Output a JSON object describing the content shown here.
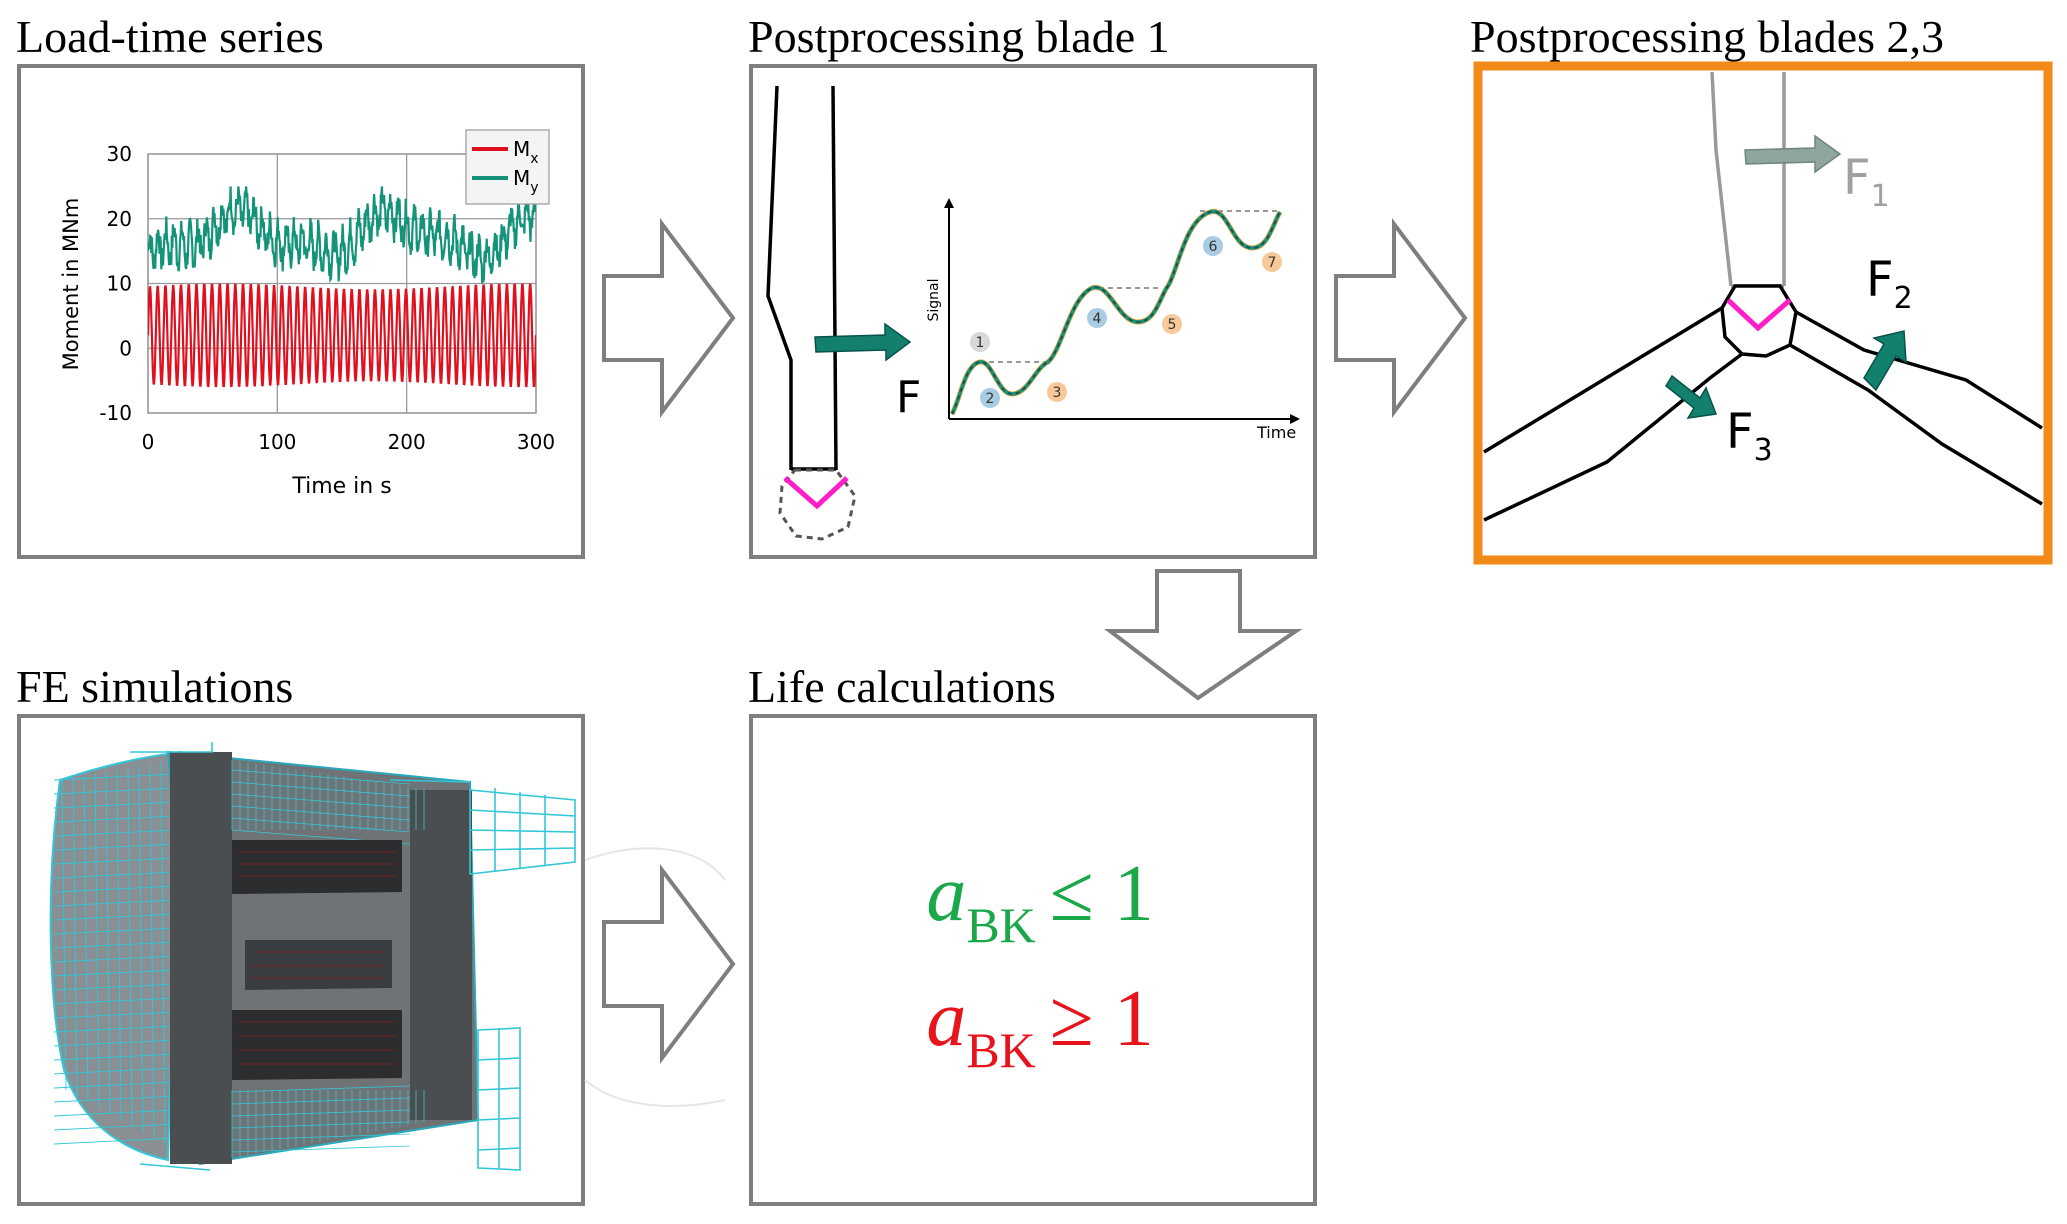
{
  "panels": {
    "load_time": {
      "title": "Load-time series",
      "chart_data": {
        "type": "line",
        "xlabel": "Time in s",
        "ylabel": "Moment in  MNm",
        "xlim": [
          0,
          300
        ],
        "ylim": [
          -10,
          30
        ],
        "x_ticks": [
          "0",
          "100",
          "200",
          "300"
        ],
        "y_ticks": [
          "30",
          "20",
          "10",
          "0",
          "-10"
        ],
        "grid": true,
        "legend_position": "top-right",
        "series": [
          {
            "name": "Mx",
            "color": "#e0101e",
            "mean": 2,
            "amplitude": 7.5,
            "oscillation_count": 50
          },
          {
            "name": "My",
            "color": "#12937a",
            "mean": 17.5,
            "range": [
              10,
              25
            ]
          }
        ]
      },
      "legend": [
        {
          "base": "M",
          "sub": "x",
          "color": "#e0101e"
        },
        {
          "base": "M",
          "sub": "y",
          "color": "#12937a"
        }
      ]
    },
    "blade1": {
      "title": "Postprocessing blade 1",
      "force_label": "F",
      "signal_axis": "Signal",
      "time_axis": "Time",
      "points": [
        {
          "label": "1",
          "color": "#d9d9d9"
        },
        {
          "label": "2",
          "color": "#a9cce3"
        },
        {
          "label": "3",
          "color": "#f7c99a"
        },
        {
          "label": "4",
          "color": "#a9cce3"
        },
        {
          "label": "5",
          "color": "#f7c99a"
        },
        {
          "label": "6",
          "color": "#a9cce3"
        },
        {
          "label": "7",
          "color": "#f7c99a"
        }
      ]
    },
    "blades23": {
      "title": "Postprocessing blades 2,3",
      "border_color": "#f28a18",
      "forces": [
        {
          "base": "F",
          "sub": "1",
          "color": "#a0a0a0"
        },
        {
          "base": "F",
          "sub": "2",
          "color": "#000000"
        },
        {
          "base": "F",
          "sub": "3",
          "color": "#000000"
        }
      ]
    },
    "fe": {
      "title": "FE simulations"
    },
    "life": {
      "title": "Life calculations",
      "conditions": [
        {
          "symbol": "a",
          "sub": "BK",
          "relation": "≤ 1",
          "color": "#1aa84a"
        },
        {
          "symbol": "a",
          "sub": "BK",
          "relation": "≥ 1",
          "color": "#e8141c"
        }
      ]
    }
  },
  "colors": {
    "box_border": "#7f7f7f",
    "arrow_fill": "#12806d",
    "hub_accent": "#ff1ec8"
  }
}
